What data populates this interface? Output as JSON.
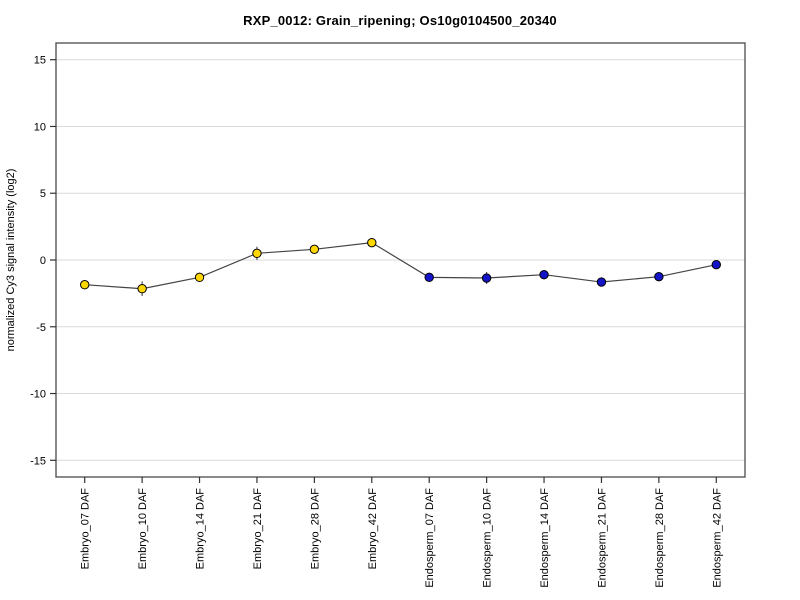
{
  "chart_data": {
    "type": "line",
    "title": "RXP_0012: Grain_ripening; Os10g0104500_20340",
    "xlabel": "",
    "ylabel": "normalized Cy3 signal intensity (log2)",
    "categories": [
      "Embryo_07 DAF",
      "Embryo_10 DAF",
      "Embryo_14 DAF",
      "Embryo_21 DAF",
      "Embryo_28 DAF",
      "Embryo_42 DAF",
      "Endosperm_07 DAF",
      "Endosperm_10 DAF",
      "Endosperm_14 DAF",
      "Endosperm_21 DAF",
      "Endosperm_28 DAF",
      "Endosperm_42 DAF"
    ],
    "values": [
      -1.85,
      -2.15,
      -1.3,
      0.5,
      0.8,
      1.3,
      -1.3,
      -1.35,
      -1.1,
      -1.65,
      -1.25,
      -0.35
    ],
    "errors": [
      0.15,
      0.55,
      0.2,
      0.5,
      0.25,
      0.3,
      0.15,
      0.45,
      0.15,
      0.15,
      0.15,
      0.15
    ],
    "point_colors": [
      "#FFD700",
      "#FFD700",
      "#FFD700",
      "#FFD700",
      "#FFD700",
      "#FFD700",
      "#1414C8",
      "#1414C8",
      "#1414C8",
      "#1414C8",
      "#1414C8",
      "#1414C8"
    ],
    "groups": [
      {
        "name": "Embryo",
        "color": "#FFD700"
      },
      {
        "name": "Endosperm",
        "color": "#1414C8"
      }
    ],
    "yticks": [
      15,
      10,
      5,
      0,
      -5,
      -10,
      -15
    ],
    "ylim": [
      -16.25,
      16.25
    ],
    "grid": "horizontal",
    "legend": "none",
    "line_color": "#444444",
    "box_color": "#4a4a4a",
    "grid_color": "#d9d9d9",
    "tick_color": "#333333",
    "text_color": "#000000",
    "background": "#ffffff"
  }
}
